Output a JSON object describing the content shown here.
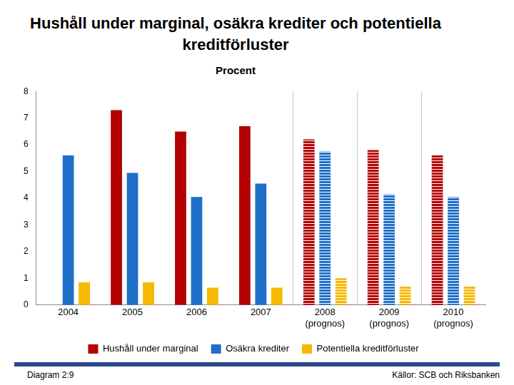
{
  "chart_data": {
    "type": "bar",
    "title": "Hushåll under marginal, osäkra krediter och potentiella kreditförluster",
    "subtitle": "Procent",
    "categories": [
      "2004",
      "2005",
      "2006",
      "2007",
      "2008\n(prognos)",
      "2009\n(prognos)",
      "2010\n(prognos)"
    ],
    "series": [
      {
        "name": "Hushåll under marginal",
        "color": "#b40000",
        "values": [
          null,
          7.3,
          6.5,
          6.7,
          6.2,
          5.8,
          5.6
        ]
      },
      {
        "name": "Osäkra krediter",
        "color": "#1f6fc8",
        "values": [
          5.6,
          4.95,
          4.05,
          4.55,
          5.75,
          4.15,
          4.05
        ]
      },
      {
        "name": "Potentiella kreditförluster",
        "color": "#f7b900",
        "values": [
          0.85,
          0.85,
          0.65,
          0.65,
          1.0,
          0.7,
          0.7
        ]
      }
    ],
    "ylim": [
      0,
      8
    ],
    "yticks": [
      0,
      1,
      2,
      3,
      4,
      5,
      6,
      7,
      8
    ],
    "grid": false,
    "legend": "bottom",
    "annotations": [
      "Diagram 2:9",
      "Källor: SCB och Riksbanken"
    ]
  }
}
